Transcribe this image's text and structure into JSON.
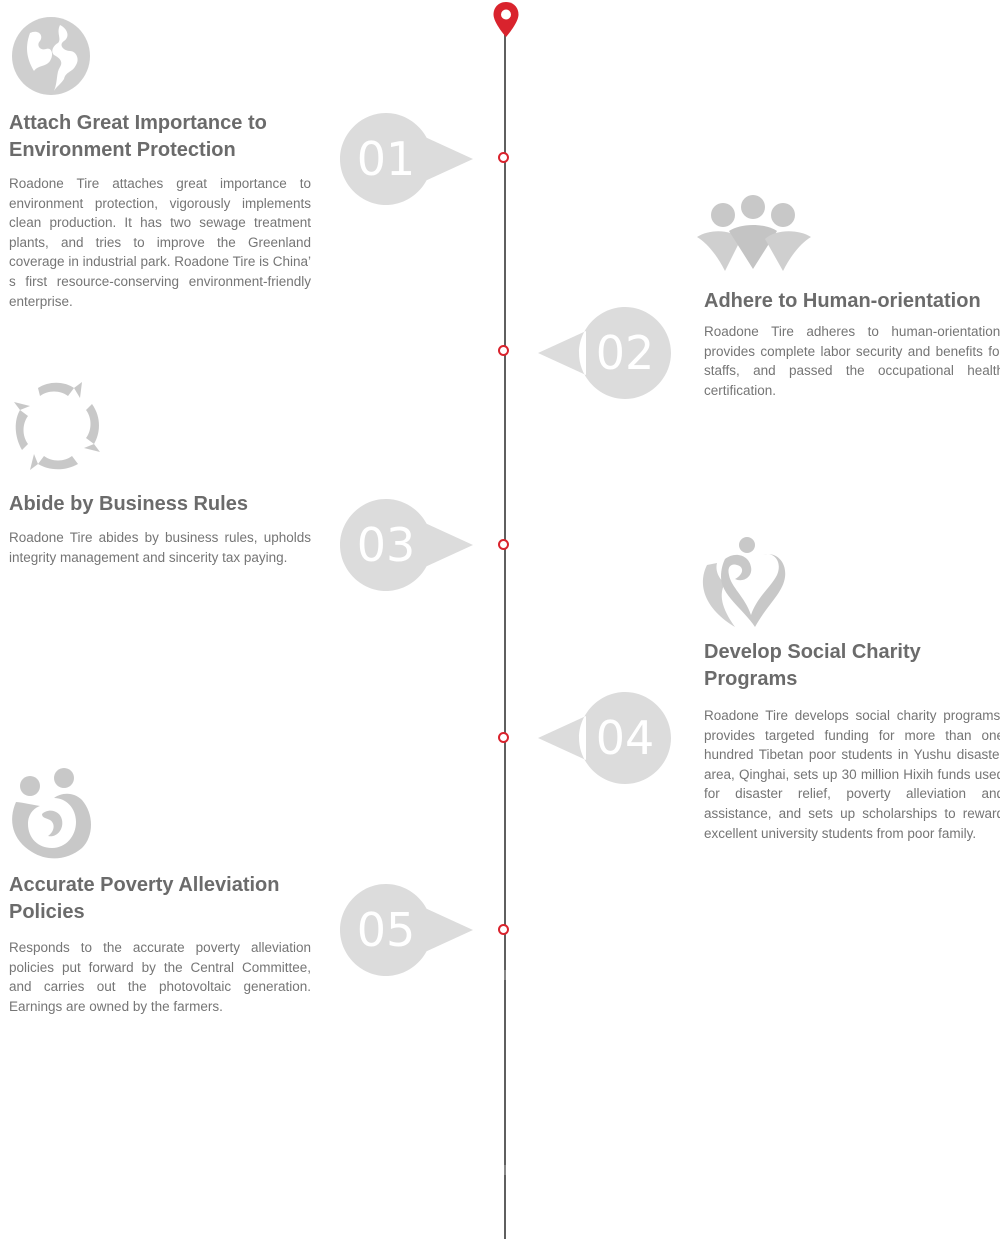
{
  "colors": {
    "accent": "#d9232d",
    "line": "#5f5f5f",
    "badge": "#dcdcdc",
    "title": "#6b6b6b",
    "body": "#757575",
    "icon": "#c8c8c8"
  },
  "timeline": {
    "pin_icon": "map-pin-icon"
  },
  "items": [
    {
      "number": "01",
      "icon": "globe-icon",
      "title_lines": [
        "Attach Great Importance to",
        "Environment Protection"
      ],
      "text": "Roadone Tire attaches great importance to environment protection, vigorously implements clean production. It has two sewage treatment plants, and tries to improve the Greenland coverage in industrial park. Roadone Tire is China’ s first resource-conserving environment-friendly enterprise."
    },
    {
      "number": "02",
      "icon": "people-icon",
      "title_lines": [
        "Adhere to Human-orientation"
      ],
      "text": "Roadone Tire adheres to human-orientation, provides complete labor security and benefits for staffs, and passed the occupational health certification."
    },
    {
      "number": "03",
      "icon": "arrows-circle-icon",
      "title_lines": [
        "Abide by Business Rules"
      ],
      "text": "Roadone Tire abides by business rules, upholds integrity management and sincerity tax paying."
    },
    {
      "number": "04",
      "icon": "charity-heart-icon",
      "title_lines": [
        "Develop Social Charity",
        "Programs"
      ],
      "text": "Roadone Tire develops social charity programs, provides targeted funding for more than one hundred Tibetan poor students in Yushu disaster area, Qinghai, sets up 30 million Hixih funds used for disaster relief, poverty alleviation and assistance, and sets up scholarships to reward excellent university students from poor family."
    },
    {
      "number": "05",
      "icon": "family-care-icon",
      "title_lines": [
        "Accurate Poverty Alleviation",
        "Policies"
      ],
      "text": "Responds to the accurate poverty alleviation policies put forward by the Central Committee, and carries out the photovoltaic generation. Earnings are owned by the farmers."
    }
  ]
}
